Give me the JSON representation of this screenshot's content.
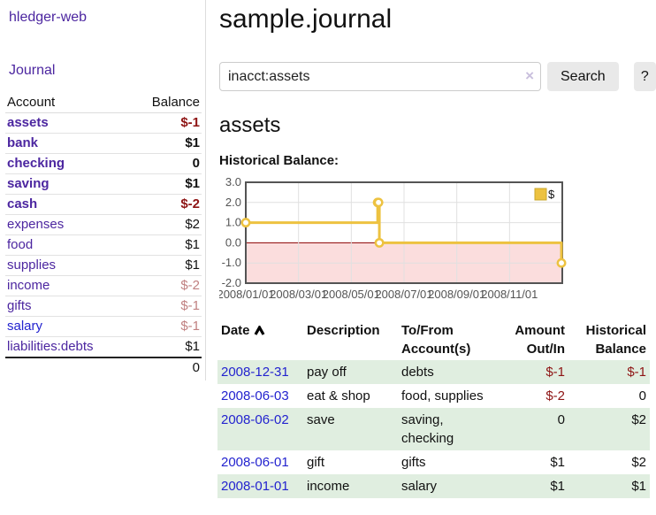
{
  "colors": {
    "purple": "#4c26a0",
    "blue": "#2323cf",
    "neg_strong": "#8e1414",
    "neg_soft": "#c08181",
    "row_green": "#e0eee0",
    "button_bg": "#e9e9e9",
    "lavender": "#c9bfdd",
    "gold": "#edc240",
    "gold_dark": "#c9a72e",
    "grid": "#e0e0e0",
    "border": "#545454",
    "zero_line": "#8b0000",
    "negative_fill": "#fbdddd"
  },
  "sidebar": {
    "brand": "hledger-web",
    "nav": [
      {
        "label": "Journal"
      }
    ],
    "accounts_table": {
      "headers": {
        "account": "Account",
        "balance": "Balance"
      },
      "rows": [
        {
          "name": "assets",
          "indent": 1,
          "bold": true,
          "balance": "$-1",
          "balance_style": "neg-strong"
        },
        {
          "name": "bank",
          "indent": 2,
          "bold": true,
          "balance": "$1",
          "balance_style": "pos"
        },
        {
          "name": "checking",
          "indent": 3,
          "bold": true,
          "balance": "0",
          "balance_style": "pos"
        },
        {
          "name": "saving",
          "indent": 3,
          "bold": true,
          "balance": "$1",
          "balance_style": "pos"
        },
        {
          "name": "cash",
          "indent": 2,
          "bold": true,
          "balance": "$-2",
          "balance_style": "neg-strong"
        },
        {
          "name": "expenses",
          "indent": 1,
          "bold": false,
          "balance": "$2",
          "balance_style": "pos"
        },
        {
          "name": "food",
          "indent": 2,
          "bold": false,
          "balance": "$1",
          "balance_style": "pos"
        },
        {
          "name": "supplies",
          "indent": 2,
          "bold": false,
          "balance": "$1",
          "balance_style": "pos"
        },
        {
          "name": "income",
          "indent": 1,
          "bold": false,
          "balance": "$-2",
          "balance_style": "neg-soft"
        },
        {
          "name": "gifts",
          "indent": 2,
          "bold": false,
          "balance": "$-1",
          "balance_style": "neg-soft"
        },
        {
          "name": "salary",
          "indent": 2,
          "bold": false,
          "link_color": "blue",
          "balance": "$-1",
          "balance_style": "neg-soft"
        },
        {
          "name": "liabilities:debts",
          "indent": 1,
          "bold": false,
          "balance": "$1",
          "balance_style": "pos"
        }
      ],
      "total": "0"
    }
  },
  "main": {
    "title": "sample.journal",
    "search": {
      "value": "inacct:assets",
      "clear_icon": "×",
      "button": "Search",
      "help_button": "?"
    },
    "account_heading": "assets"
  },
  "chart_data": {
    "type": "line",
    "title": "Historical Balance:",
    "legend": "$",
    "legend_position": "top-right",
    "step": true,
    "grid": true,
    "ylim": [
      -2,
      3
    ],
    "y_ticks": [
      "3.0",
      "2.0",
      "1.0",
      "0.0",
      "-1.0",
      "-2.0"
    ],
    "x_range_months": [
      0,
      12
    ],
    "x_ticks": [
      "2008/01/01",
      "2008/03/01",
      "2008/05/01",
      "2008/07/01",
      "2008/09/01",
      "2008/11/01"
    ],
    "series": [
      {
        "name": "$",
        "points": [
          {
            "date": "2008-01-01",
            "value": 1
          },
          {
            "date": "2008-06-01",
            "value": 2
          },
          {
            "date": "2008-06-02",
            "value": 2
          },
          {
            "date": "2008-06-03",
            "value": 0
          },
          {
            "date": "2008-12-31",
            "value": -1
          }
        ]
      }
    ]
  },
  "register_table": {
    "headers": {
      "date": "Date",
      "description": "Description",
      "accounts": "To/From Account(s)",
      "amount": "Amount Out/In",
      "balance": "Historical Balance"
    },
    "rows": [
      {
        "date": "2008-12-31",
        "description": "pay off",
        "accounts": "debts",
        "amount": "$-1",
        "amount_neg": true,
        "balance": "$-1",
        "balance_neg": true
      },
      {
        "date": "2008-06-03",
        "description": "eat & shop",
        "accounts": "food, supplies",
        "amount": "$-2",
        "amount_neg": true,
        "balance": "0",
        "balance_neg": false
      },
      {
        "date": "2008-06-02",
        "description": "save",
        "accounts": "saving, checking",
        "amount": "0",
        "amount_neg": false,
        "balance": "$2",
        "balance_neg": false
      },
      {
        "date": "2008-06-01",
        "description": "gift",
        "accounts": "gifts",
        "amount": "$1",
        "amount_neg": false,
        "balance": "$2",
        "balance_neg": false
      },
      {
        "date": "2008-01-01",
        "description": "income",
        "accounts": "salary",
        "amount": "$1",
        "amount_neg": false,
        "balance": "$1",
        "balance_neg": false
      }
    ]
  }
}
